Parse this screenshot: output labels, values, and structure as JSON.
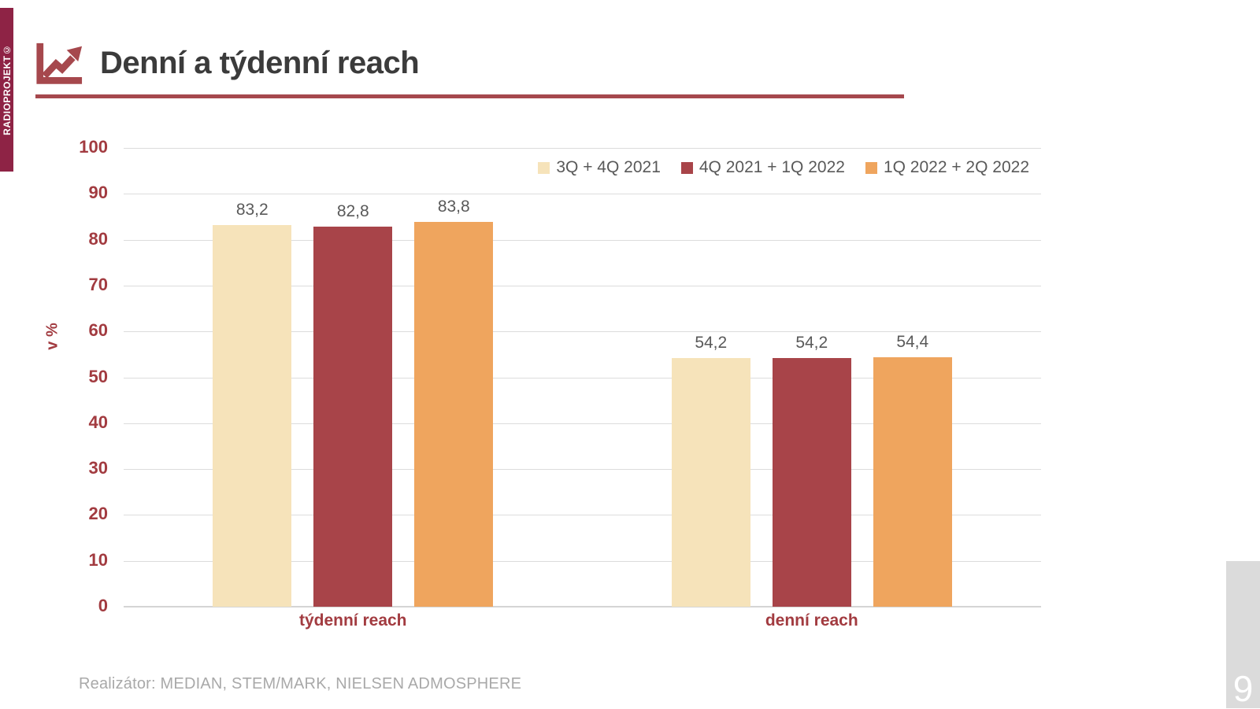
{
  "sidebar": {
    "brand": "RADIOPROJEKT©"
  },
  "header": {
    "title": "Denní a týdenní reach"
  },
  "chart_data": {
    "type": "bar",
    "title": "Denní a týdenní reach",
    "xlabel": "",
    "ylabel": "v %",
    "ylim": [
      0,
      100
    ],
    "ytick_step": 10,
    "grid": true,
    "legend_position": "top-right",
    "decimal_separator": ",",
    "categories": [
      "týdenní reach",
      "denní reach"
    ],
    "series": [
      {
        "name": "3Q + 4Q 2021",
        "color": "#f6e3ba",
        "values": [
          83.2,
          54.2
        ]
      },
      {
        "name": "4Q 2021 + 1Q 2022",
        "color": "#a84449",
        "values": [
          82.8,
          54.2
        ]
      },
      {
        "name": "1Q 2022 + 2Q 2022",
        "color": "#efa55e",
        "values": [
          83.8,
          54.4
        ]
      }
    ]
  },
  "footer": {
    "realizator": "Realizátor: MEDIAN, STEM/MARK, NIELSEN ADMOSPHERE",
    "page_number": "9"
  },
  "colors": {
    "brand_strip": "#8e2345",
    "accent_red": "#a6484d",
    "axis_text": "#a23b40",
    "title_text": "#3b3b3b",
    "value_text": "#595959",
    "footer_text": "#a9a9a9",
    "gridline": "#dcdcdc",
    "page_bar": "#dbdbdb"
  }
}
